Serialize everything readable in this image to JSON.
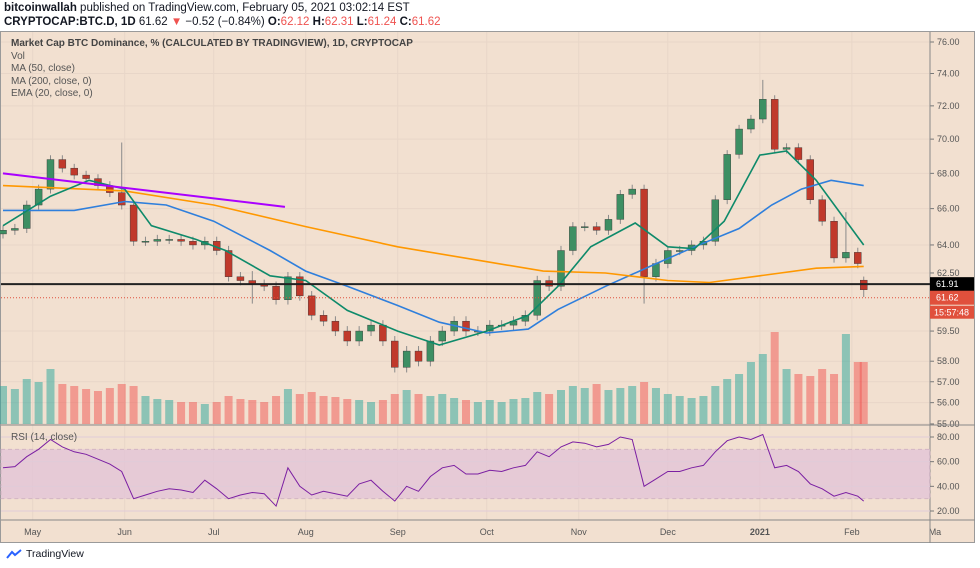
{
  "header": {
    "author": "bitcoinwallah",
    "published": "published on TradingView.com, February 05, 2021 03:02:14 EST",
    "symbol": "CRYPTOCAP:BTC.D, 1D",
    "last": "61.62",
    "change": "−0.52 (−0.84%)",
    "o_label": "O:",
    "o": "62.12",
    "h_label": "H:",
    "h": "62.31",
    "l_label": "L:",
    "l": "61.24",
    "c_label": "C:",
    "c": "61.62"
  },
  "legend": {
    "title": "Market Cap BTC Dominance, % (CALCULATED BY TRADINGVIEW), 1D, CRYPTOCAP",
    "vol": "Vol",
    "ma50": "MA (50, close)",
    "ma200": "MA (200, close, 0)",
    "ema20": "EMA (20, close, 0)",
    "rsi": "RSI (14, close)"
  },
  "footer": {
    "brand": "TradingView"
  },
  "colors": {
    "up": "#26a69a",
    "down": "#ef5350",
    "candle_up": "#3d8f63",
    "candle_down": "#c0392b",
    "ma50": "#2f7fdc",
    "ma200": "#ff9800",
    "ema20": "#0e8a6a",
    "trendline": "#aa00ff",
    "support": "#222222",
    "rsi": "#7b1fa2",
    "rsi_band": "#e3c3d8",
    "price_label": "#e0503c"
  },
  "chart_data": {
    "type": "candlestick",
    "scale": "log",
    "grid": true,
    "price_ticks": [
      "76.00",
      "74.00",
      "72.00",
      "70.00",
      "68.00",
      "66.00",
      "64.00",
      "62.50",
      "59.50",
      "58.00",
      "57.00",
      "56.00",
      "55.00"
    ],
    "rsi_ticks": [
      "80.00",
      "60.00",
      "40.00",
      "20.00"
    ],
    "rsi_band": [
      30,
      70
    ],
    "x_ticks": [
      {
        "d": "2020-05-01",
        "label": "May"
      },
      {
        "d": "2020-06-01",
        "label": "Jun"
      },
      {
        "d": "2020-07-01",
        "label": "Jul"
      },
      {
        "d": "2020-08-01",
        "label": "Aug"
      },
      {
        "d": "2020-09-01",
        "label": "Sep"
      },
      {
        "d": "2020-10-01",
        "label": "Oct"
      },
      {
        "d": "2020-11-01",
        "label": "Nov"
      },
      {
        "d": "2020-12-01",
        "label": "Dec"
      },
      {
        "d": "2021-01-01",
        "label": "2021"
      },
      {
        "d": "2021-02-01",
        "label": "Feb"
      },
      {
        "d": "2021-03-01",
        "label": "Ma"
      }
    ],
    "support_level": {
      "value": 61.91,
      "label": "61.91"
    },
    "last_price": {
      "value": 61.62,
      "label": "61.62",
      "countdown": "15:57:48"
    },
    "trendline": [
      {
        "d": "2020-04-21",
        "v": 68.0
      },
      {
        "d": "2020-07-25",
        "v": 66.1
      }
    ],
    "candles": [
      {
        "d": "2020-04-21",
        "o": 64.6,
        "c": 64.8,
        "v": 38,
        "rsi": 55
      },
      {
        "d": "2020-04-25",
        "c": 64.9,
        "v": 35,
        "rsi": 56
      },
      {
        "d": "2020-04-29",
        "c": 66.2,
        "v": 45,
        "rsi": 64
      },
      {
        "d": "2020-05-03",
        "c": 67.1,
        "v": 42,
        "rsi": 70
      },
      {
        "d": "2020-05-07",
        "c": 68.8,
        "v": 55,
        "rsi": 78
      },
      {
        "d": "2020-05-11",
        "c": 68.3,
        "v": 40,
        "rsi": 72
      },
      {
        "d": "2020-05-15",
        "c": 67.9,
        "v": 38,
        "rsi": 68
      },
      {
        "d": "2020-05-19",
        "c": 67.7,
        "v": 35,
        "rsi": 66
      },
      {
        "d": "2020-05-23",
        "c": 67.3,
        "v": 33,
        "rsi": 62
      },
      {
        "d": "2020-05-27",
        "c": 66.9,
        "v": 36,
        "rsi": 58
      },
      {
        "d": "2020-05-31",
        "c": 66.2,
        "h": 69.8,
        "v": 40,
        "rsi": 52
      },
      {
        "d": "2020-06-04",
        "c": 64.2,
        "v": 38,
        "rsi": 30
      },
      {
        "d": "2020-06-08",
        "c": 64.2,
        "v": 28,
        "rsi": 33
      },
      {
        "d": "2020-06-12",
        "c": 64.3,
        "v": 25,
        "rsi": 36
      },
      {
        "d": "2020-06-16",
        "c": 64.3,
        "v": 24,
        "rsi": 38
      },
      {
        "d": "2020-06-20",
        "c": 64.2,
        "v": 22,
        "rsi": 37
      },
      {
        "d": "2020-06-24",
        "c": 64.0,
        "v": 22,
        "rsi": 35
      },
      {
        "d": "2020-06-28",
        "c": 64.2,
        "v": 20,
        "rsi": 45
      },
      {
        "d": "2020-07-02",
        "c": 63.7,
        "v": 22,
        "rsi": 38
      },
      {
        "d": "2020-07-06",
        "c": 62.3,
        "v": 28,
        "rsi": 30
      },
      {
        "d": "2020-07-10",
        "c": 62.1,
        "v": 25,
        "rsi": 33
      },
      {
        "d": "2020-07-14",
        "c": 61.9,
        "h": 62.6,
        "l": 60.9,
        "v": 24,
        "rsi": 35
      },
      {
        "d": "2020-07-18",
        "c": 61.8,
        "v": 22,
        "rsi": 34
      },
      {
        "d": "2020-07-22",
        "c": 61.1,
        "v": 28,
        "rsi": 24
      },
      {
        "d": "2020-07-26",
        "c": 62.3,
        "v": 35,
        "rsi": 55
      },
      {
        "d": "2020-07-30",
        "c": 61.3,
        "v": 30,
        "rsi": 40
      },
      {
        "d": "2020-08-03",
        "c": 60.3,
        "v": 32,
        "rsi": 33
      },
      {
        "d": "2020-08-07",
        "c": 60.0,
        "v": 28,
        "rsi": 36
      },
      {
        "d": "2020-08-11",
        "c": 59.5,
        "v": 27,
        "rsi": 34
      },
      {
        "d": "2020-08-15",
        "c": 59.0,
        "v": 25,
        "rsi": 32
      },
      {
        "d": "2020-08-19",
        "c": 59.5,
        "v": 24,
        "rsi": 42
      },
      {
        "d": "2020-08-23",
        "c": 59.8,
        "v": 22,
        "rsi": 45
      },
      {
        "d": "2020-08-27",
        "c": 59.0,
        "v": 24,
        "rsi": 36
      },
      {
        "d": "2020-08-31",
        "c": 57.7,
        "v": 30,
        "rsi": 28
      },
      {
        "d": "2020-09-04",
        "c": 58.5,
        "v": 34,
        "rsi": 40
      },
      {
        "d": "2020-09-08",
        "c": 58.0,
        "v": 30,
        "rsi": 36
      },
      {
        "d": "2020-09-12",
        "c": 59.0,
        "v": 28,
        "rsi": 48
      },
      {
        "d": "2020-09-16",
        "c": 59.5,
        "v": 30,
        "rsi": 55
      },
      {
        "d": "2020-09-20",
        "c": 60.0,
        "v": 26,
        "rsi": 57
      },
      {
        "d": "2020-09-24",
        "c": 59.5,
        "v": 24,
        "rsi": 50
      },
      {
        "d": "2020-09-28",
        "c": 59.5,
        "v": 22,
        "rsi": 50
      },
      {
        "d": "2020-10-02",
        "c": 59.8,
        "v": 24,
        "rsi": 53
      },
      {
        "d": "2020-10-06",
        "c": 59.8,
        "v": 22,
        "rsi": 52
      },
      {
        "d": "2020-10-10",
        "c": 60.0,
        "v": 25,
        "rsi": 55
      },
      {
        "d": "2020-10-14",
        "c": 60.3,
        "v": 26,
        "rsi": 57
      },
      {
        "d": "2020-10-18",
        "c": 62.1,
        "v": 32,
        "rsi": 68
      },
      {
        "d": "2020-10-22",
        "c": 61.8,
        "v": 30,
        "rsi": 64
      },
      {
        "d": "2020-10-26",
        "c": 63.7,
        "v": 34,
        "rsi": 72
      },
      {
        "d": "2020-10-30",
        "c": 65.0,
        "v": 38,
        "rsi": 76
      },
      {
        "d": "2020-11-03",
        "c": 65.0,
        "v": 36,
        "rsi": 75
      },
      {
        "d": "2020-11-07",
        "c": 64.8,
        "v": 40,
        "rsi": 72
      },
      {
        "d": "2020-11-11",
        "c": 65.4,
        "v": 34,
        "rsi": 74
      },
      {
        "d": "2020-11-15",
        "c": 66.8,
        "v": 36,
        "rsi": 80
      },
      {
        "d": "2020-11-19",
        "c": 67.1,
        "v": 38,
        "rsi": 78
      },
      {
        "d": "2020-11-23",
        "c": 62.3,
        "l": 60.9,
        "v": 42,
        "rsi": 40
      },
      {
        "d": "2020-11-27",
        "c": 63.0,
        "v": 36,
        "rsi": 46
      },
      {
        "d": "2020-12-01",
        "c": 63.7,
        "v": 30,
        "rsi": 52
      },
      {
        "d": "2020-12-05",
        "c": 63.7,
        "v": 28,
        "rsi": 52
      },
      {
        "d": "2020-12-09",
        "c": 64.0,
        "v": 26,
        "rsi": 55
      },
      {
        "d": "2020-12-13",
        "c": 64.2,
        "v": 28,
        "rsi": 57
      },
      {
        "d": "2020-12-17",
        "c": 66.5,
        "v": 38,
        "rsi": 68
      },
      {
        "d": "2020-12-21",
        "c": 69.1,
        "v": 45,
        "rsi": 77
      },
      {
        "d": "2020-12-25",
        "c": 70.6,
        "v": 50,
        "rsi": 80
      },
      {
        "d": "2020-12-29",
        "c": 71.2,
        "v": 62,
        "rsi": 78
      },
      {
        "d": "2021-01-02",
        "c": 72.4,
        "h": 73.6,
        "v": 70,
        "rsi": 82
      },
      {
        "d": "2021-01-06",
        "c": 69.4,
        "v": 92,
        "rsi": 55
      },
      {
        "d": "2021-01-10",
        "c": 69.5,
        "v": 55,
        "rsi": 57
      },
      {
        "d": "2021-01-14",
        "c": 68.8,
        "v": 50,
        "rsi": 52
      },
      {
        "d": "2021-01-18",
        "c": 66.5,
        "v": 48,
        "rsi": 42
      },
      {
        "d": "2021-01-22",
        "c": 65.3,
        "v": 55,
        "rsi": 38
      },
      {
        "d": "2021-01-26",
        "c": 63.3,
        "v": 50,
        "rsi": 32
      },
      {
        "d": "2021-01-30",
        "c": 63.6,
        "h": 65.8,
        "v": 90,
        "rsi": 35
      },
      {
        "d": "2021-02-03",
        "c": 63.0,
        "v": 62,
        "rsi": 32
      },
      {
        "d": "2021-02-05",
        "o": 62.12,
        "h": 62.31,
        "l": 61.24,
        "c": 61.62,
        "v": 62,
        "rsi": 28
      }
    ],
    "series": [
      {
        "name": "MA (50, close)",
        "key": "ma50",
        "points": [
          [
            "2020-04-21",
            65.9
          ],
          [
            "2020-05-15",
            65.9
          ],
          [
            "2020-06-01",
            66.4
          ],
          [
            "2020-06-15",
            66.2
          ],
          [
            "2020-07-01",
            65.3
          ],
          [
            "2020-07-20",
            63.7
          ],
          [
            "2020-08-01",
            62.6
          ],
          [
            "2020-08-15",
            61.8
          ],
          [
            "2020-09-01",
            60.8
          ],
          [
            "2020-09-15",
            59.95
          ],
          [
            "2020-10-01",
            59.4
          ],
          [
            "2020-10-15",
            59.6
          ],
          [
            "2020-10-25",
            60.6
          ],
          [
            "2020-11-10",
            61.8
          ],
          [
            "2020-11-25",
            62.85
          ],
          [
            "2020-12-10",
            63.9
          ],
          [
            "2020-12-25",
            64.9
          ],
          [
            "2021-01-05",
            66.2
          ],
          [
            "2021-01-15",
            67.1
          ],
          [
            "2021-01-25",
            67.6
          ],
          [
            "2021-02-05",
            67.3
          ]
        ]
      },
      {
        "name": "MA (200, close, 0)",
        "key": "ma200",
        "points": [
          [
            "2020-04-21",
            67.3
          ],
          [
            "2020-06-01",
            67.0
          ],
          [
            "2020-07-01",
            66.2
          ],
          [
            "2020-08-01",
            65.0
          ],
          [
            "2020-09-01",
            63.9
          ],
          [
            "2020-10-01",
            63.1
          ],
          [
            "2020-10-20",
            62.6
          ],
          [
            "2020-11-10",
            62.5
          ],
          [
            "2020-12-01",
            62.1
          ],
          [
            "2020-12-15",
            62.0
          ],
          [
            "2021-01-01",
            62.35
          ],
          [
            "2021-01-20",
            62.75
          ],
          [
            "2021-02-05",
            62.85
          ]
        ]
      },
      {
        "name": "EMA (20, close, 0)",
        "key": "ema20",
        "points": [
          [
            "2020-04-21",
            65.05
          ],
          [
            "2020-05-07",
            66.7
          ],
          [
            "2020-05-20",
            67.6
          ],
          [
            "2020-06-01",
            67.1
          ],
          [
            "2020-06-10",
            65.05
          ],
          [
            "2020-06-25",
            64.3
          ],
          [
            "2020-07-05",
            63.7
          ],
          [
            "2020-07-20",
            62.35
          ],
          [
            "2020-08-01",
            62.1
          ],
          [
            "2020-08-15",
            60.55
          ],
          [
            "2020-09-01",
            59.5
          ],
          [
            "2020-09-15",
            58.8
          ],
          [
            "2020-10-01",
            59.5
          ],
          [
            "2020-10-15",
            60.3
          ],
          [
            "2020-10-25",
            61.8
          ],
          [
            "2020-11-05",
            63.9
          ],
          [
            "2020-11-20",
            65.2
          ],
          [
            "2020-12-01",
            63.9
          ],
          [
            "2020-12-10",
            63.8
          ],
          [
            "2020-12-20",
            65.3
          ],
          [
            "2021-01-01",
            69.06
          ],
          [
            "2021-01-10",
            69.3
          ],
          [
            "2021-01-20",
            67.6
          ],
          [
            "2021-02-05",
            64.0
          ]
        ]
      }
    ]
  }
}
